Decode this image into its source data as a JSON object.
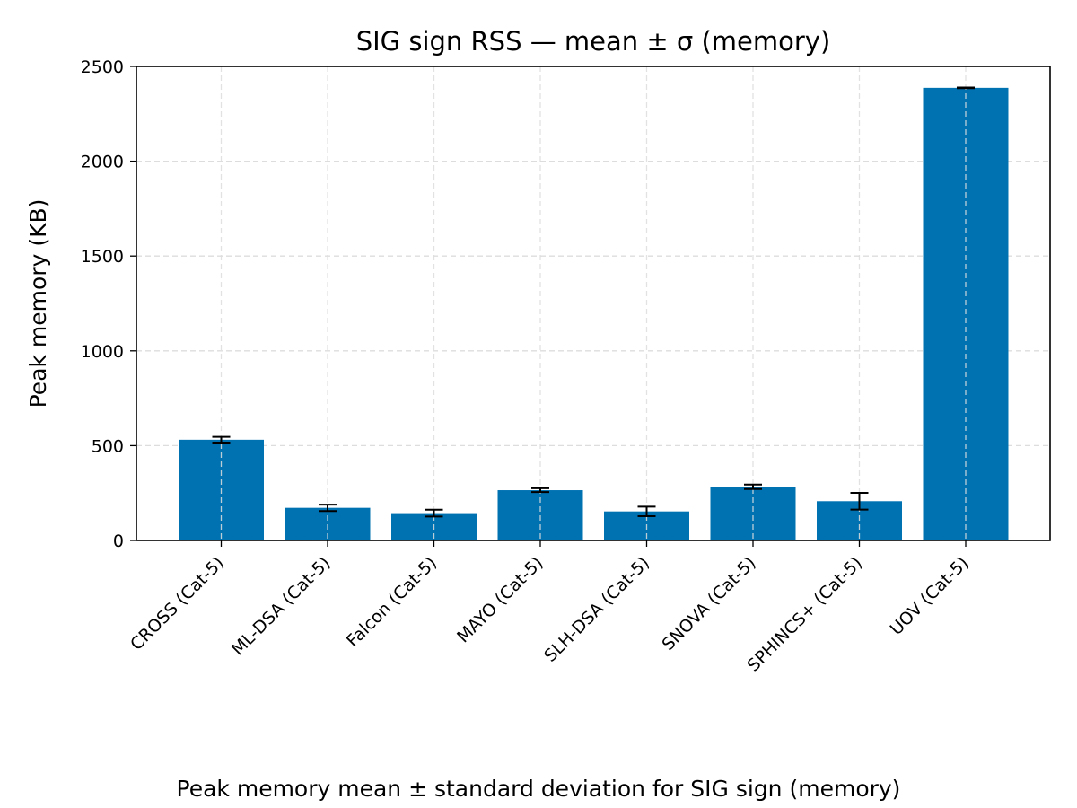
{
  "chart_data": {
    "type": "bar",
    "title": "SIG sign RSS — mean ± σ (memory)",
    "xlabel": "",
    "ylabel": "Peak memory (KB)",
    "categories": [
      "CROSS (Cat-5)",
      "ML-DSA (Cat-5)",
      "Falcon (Cat-5)",
      "MAYO (Cat-5)",
      "SLH-DSA (Cat-5)",
      "SNOVA (Cat-5)",
      "SPHINCS+ (Cat-5)",
      "UOV (Cat-5)"
    ],
    "values": [
      531,
      172,
      144,
      265,
      153,
      283,
      207,
      2387
    ],
    "errors": [
      15,
      17,
      18,
      10,
      25,
      12,
      44,
      2
    ],
    "ylim": [
      0,
      2500
    ],
    "yticks": [
      0,
      500,
      1000,
      1500,
      2000,
      2500
    ],
    "grid": true,
    "bar_color": "#0072b2",
    "error_color": "#000000",
    "grid_color": "#dddddd"
  },
  "caption": "Peak memory mean ± standard deviation for SIG sign (memory)"
}
